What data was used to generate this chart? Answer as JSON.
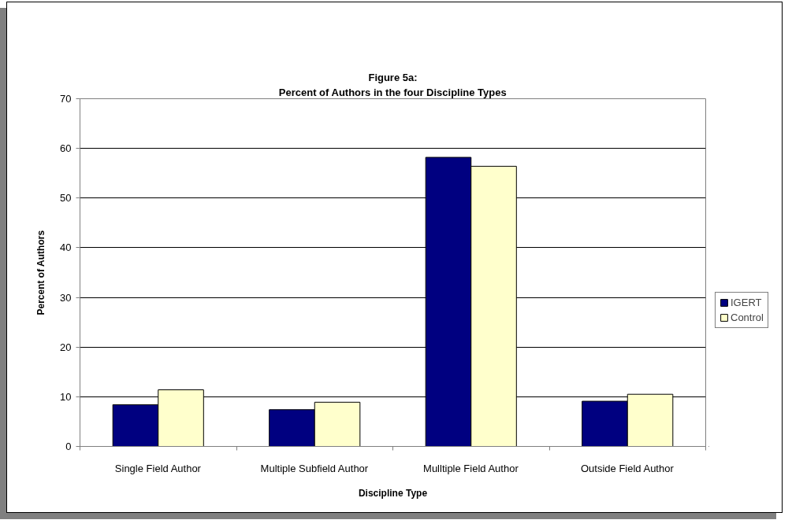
{
  "chart_data": {
    "type": "bar",
    "title": "Figure 5a:",
    "subtitle": "Percent of Authors in the four Discipline Types",
    "xlabel": "Discipline Type",
    "ylabel": "Percent of Authors",
    "categories": [
      "Single Field Author",
      "Multiple Subfield Author",
      "Mulltiple Field Author",
      "Outside Field Author"
    ],
    "series": [
      {
        "name": "IGERT",
        "color": "#000080",
        "values": [
          8.4,
          7.4,
          58.2,
          9.1
        ]
      },
      {
        "name": "Control",
        "color": "#ffffcc",
        "values": [
          11.4,
          8.9,
          56.4,
          10.5
        ]
      }
    ],
    "ylim": [
      0,
      70
    ],
    "yticks": [
      0,
      10,
      20,
      30,
      40,
      50,
      60,
      70
    ],
    "grid": "y",
    "legend": "right"
  }
}
